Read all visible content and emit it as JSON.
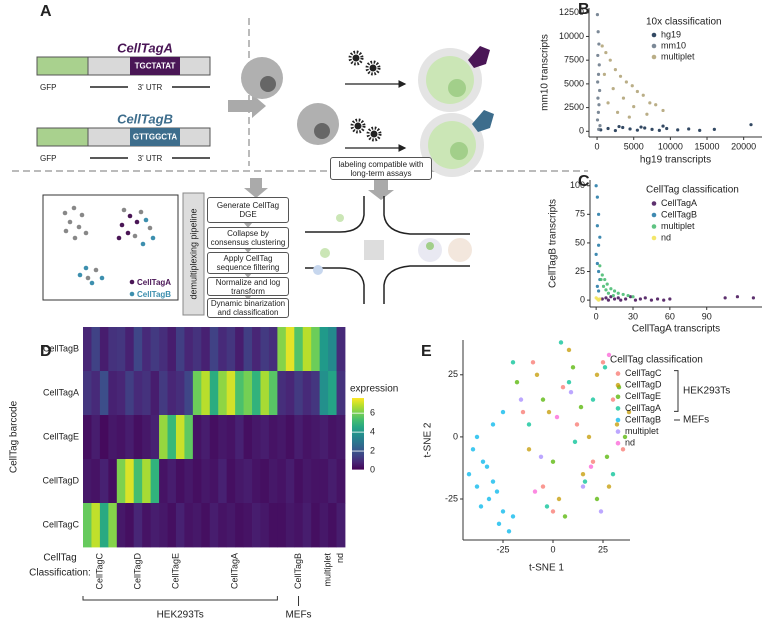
{
  "schematic": {
    "label": "A",
    "constructs": [
      {
        "name": "CellTagA",
        "barcode": "TGCTATAT",
        "gfp": "GFP",
        "utr": "3' UTR"
      },
      {
        "name": "CellTagB",
        "barcode": "GTTGGCTA",
        "gfp": "GFP",
        "utr": "3' UTR"
      }
    ],
    "assay_note": "labeling compatible with long-term assays",
    "pipeline_title": "demultiplexing pipeline",
    "pipeline_steps": [
      "Generate CellTag DGE",
      "Collapse by consensus clustering",
      "Apply CellTag sequence filtering",
      "Normalize and log transform",
      "Dynamic binarization and classification"
    ],
    "legend": [
      "CellTagA",
      "CellTagB"
    ]
  },
  "chart_data": [
    {
      "type": "scatter",
      "panel": "B",
      "xlabel": "hg19 transcripts",
      "ylabel": "mm10 transcripts",
      "legend_title": "10x classification",
      "legend": "top-right",
      "xlim": [
        -1100,
        22500
      ],
      "ylim": [
        -600,
        13000
      ],
      "xticks": [
        0,
        5000,
        10000,
        15000,
        20000
      ],
      "yticks": [
        0,
        2500,
        5000,
        7500,
        10000,
        12500
      ],
      "series": [
        {
          "name": "hg19",
          "color": "#1d3552",
          "x": [
            500,
            1500,
            2500,
            3500,
            4500,
            5500,
            6500,
            7500,
            8500,
            9500,
            11000,
            12500,
            14000,
            16000,
            21000,
            3000,
            6000,
            9000
          ],
          "values": [
            150,
            300,
            80,
            400,
            250,
            120,
            350,
            200,
            100,
            300,
            150,
            250,
            100,
            200,
            700,
            500,
            450,
            550
          ]
        },
        {
          "name": "mm10",
          "color": "#6e7c8c",
          "x": [
            50,
            150,
            250,
            100,
            300,
            200,
            80,
            350,
            120,
            260,
            180,
            60,
            400,
            220
          ],
          "values": [
            12300,
            10500,
            9200,
            8000,
            7000,
            6000,
            5200,
            4300,
            3500,
            2800,
            2000,
            1200,
            600,
            200
          ]
        },
        {
          "name": "multiplet",
          "color": "#b3a57a",
          "x": [
            700,
            1200,
            1800,
            2500,
            3200,
            4000,
            4800,
            5500,
            6300,
            7200,
            8000,
            9000,
            1000,
            2200,
            3600,
            5000,
            6800,
            1500,
            2800,
            4400
          ],
          "values": [
            9000,
            8300,
            7500,
            6500,
            5800,
            5200,
            4800,
            4200,
            3800,
            3000,
            2800,
            2200,
            6000,
            4500,
            3500,
            2600,
            1800,
            3000,
            2000,
            1500
          ]
        }
      ]
    },
    {
      "type": "scatter",
      "panel": "C",
      "xlabel": "CellTagA transcripts",
      "ylabel": "CellTagB transcripts",
      "legend_title": "CellTag classification",
      "legend": "top-right",
      "xlim": [
        -5,
        135
      ],
      "ylim": [
        -6,
        105
      ],
      "xticks": [
        0,
        30,
        60,
        90
      ],
      "yticks": [
        0,
        25,
        50,
        75,
        100
      ],
      "series": [
        {
          "name": "CellTagA",
          "color": "#4b1a5e",
          "x": [
            5,
            8,
            10,
            12,
            15,
            18,
            20,
            24,
            28,
            32,
            36,
            40,
            45,
            50,
            55,
            60,
            105,
            115,
            128
          ],
          "values": [
            1,
            2,
            0,
            3,
            1,
            2,
            0,
            1,
            3,
            0,
            1,
            2,
            0,
            1,
            0,
            1,
            2,
            3,
            2
          ]
        },
        {
          "name": "CellTagB",
          "color": "#2a7da8",
          "x": [
            0,
            1,
            2,
            1,
            3,
            2,
            0,
            1,
            2,
            3,
            1,
            2
          ],
          "values": [
            100,
            90,
            75,
            65,
            55,
            48,
            40,
            32,
            25,
            18,
            12,
            8
          ]
        },
        {
          "name": "multiplet",
          "color": "#4dbd74",
          "x": [
            3,
            5,
            7,
            9,
            12,
            15,
            18,
            22,
            26,
            30,
            6,
            10,
            4,
            8,
            14
          ],
          "values": [
            30,
            22,
            18,
            14,
            10,
            8,
            6,
            5,
            4,
            3,
            12,
            6,
            18,
            9,
            4
          ]
        },
        {
          "name": "nd",
          "color": "#f2e35a",
          "x": [
            1,
            2,
            0,
            3
          ],
          "values": [
            1,
            0,
            2,
            1
          ]
        }
      ]
    },
    {
      "type": "heatmap",
      "panel": "D",
      "ylabel": "CellTag barcode",
      "xlabel": [
        "CellTag",
        "Classification:"
      ],
      "rows": [
        "CellTagB",
        "CellTagA",
        "CellTagE",
        "CellTagD",
        "CellTagC"
      ],
      "colorbar_title": "expression",
      "colormap": "viridis",
      "clim": [
        0,
        7.6
      ],
      "cticks": [
        0,
        2,
        4,
        6
      ],
      "group_labels": [
        "HEK293Ts",
        "MEFs"
      ],
      "groups": [
        {
          "name": "CellTagC",
          "values": [
            [
              0.8,
              1.2,
              0.3,
              0.5,
              5.8
            ],
            [
              1.5,
              0.9,
              0.6,
              0.4,
              6.9
            ],
            [
              0.6,
              1.8,
              0.2,
              0.7,
              4.6
            ],
            [
              1.1,
              0.7,
              0.5,
              0.3,
              6.2
            ]
          ]
        },
        {
          "name": "CellTagD",
          "values": [
            [
              1.2,
              0.8,
              0.4,
              6.1,
              0.5
            ],
            [
              0.7,
              1.4,
              0.6,
              7.2,
              0.3
            ],
            [
              1.6,
              0.9,
              0.3,
              5.3,
              0.8
            ],
            [
              0.9,
              1.1,
              0.5,
              6.6,
              0.4
            ],
            [
              1.3,
              0.6,
              0.7,
              4.9,
              0.6
            ]
          ]
        },
        {
          "name": "CellTagE",
          "values": [
            [
              1.0,
              1.3,
              6.4,
              0.4,
              0.5
            ],
            [
              0.6,
              0.8,
              5.1,
              0.6,
              0.3
            ],
            [
              1.4,
              1.0,
              7.0,
              0.3,
              0.7
            ],
            [
              0.8,
              1.6,
              5.7,
              0.5,
              0.4
            ]
          ]
        },
        {
          "name": "CellTagA",
          "values": [
            [
              1.1,
              5.9,
              0.4,
              0.3,
              0.5
            ],
            [
              0.7,
              6.8,
              0.6,
              0.5,
              0.3
            ],
            [
              1.5,
              4.7,
              0.3,
              0.4,
              0.6
            ],
            [
              0.9,
              6.3,
              0.5,
              0.7,
              0.4
            ],
            [
              1.2,
              7.1,
              0.4,
              0.3,
              0.5
            ],
            [
              0.6,
              5.4,
              0.7,
              0.5,
              0.3
            ],
            [
              1.4,
              6.0,
              0.3,
              0.6,
              0.4
            ],
            [
              0.8,
              4.9,
              0.5,
              0.4,
              0.6
            ],
            [
              1.3,
              6.6,
              0.6,
              0.3,
              0.5
            ],
            [
              1.0,
              5.6,
              0.4,
              0.5,
              0.3
            ]
          ]
        },
        {
          "name": "CellTagB",
          "values": [
            [
              6.2,
              1.0,
              0.5,
              0.4,
              0.3
            ],
            [
              7.3,
              0.8,
              0.3,
              0.6,
              0.5
            ],
            [
              5.5,
              1.3,
              0.6,
              0.3,
              0.4
            ],
            [
              6.8,
              0.9,
              0.4,
              0.5,
              0.6
            ],
            [
              5.9,
              1.2,
              0.5,
              0.4,
              0.3
            ]
          ]
        },
        {
          "name": "multiplet",
          "values": [
            [
              4.1,
              3.8,
              0.6,
              0.4,
              0.5
            ],
            [
              3.6,
              4.4,
              0.4,
              0.6,
              0.3
            ]
          ]
        },
        {
          "name": "nd",
          "values": [
            [
              0.9,
              1.1,
              0.5,
              0.4,
              0.6
            ]
          ]
        }
      ]
    },
    {
      "type": "scatter",
      "panel": "E",
      "xlabel": "t-SNE 1",
      "ylabel": "t-SNE 2",
      "legend_title": "CellTag classification",
      "legend": "right",
      "legend_groups": [
        "HEK293Ts",
        "MEFs"
      ],
      "xlim": [
        -45,
        38.5
      ],
      "ylim": [
        -41.5,
        39
      ],
      "xticks": [
        -25,
        0,
        25
      ],
      "yticks": [
        -25,
        0,
        25
      ],
      "series": [
        {
          "name": "CellTagC",
          "color": "#f8766d",
          "x": [
            -10,
            5,
            20,
            30,
            -5,
            12,
            25,
            -15,
            35,
            0
          ],
          "values": [
            30,
            20,
            -10,
            15,
            -20,
            5,
            30,
            10,
            -5,
            -30
          ]
        },
        {
          "name": "CellTagD",
          "color": "#c49a00",
          "x": [
            -8,
            8,
            18,
            28,
            -2,
            15,
            32,
            -12,
            22,
            3,
            38
          ],
          "values": [
            25,
            35,
            0,
            -20,
            10,
            -15,
            5,
            -5,
            25,
            -25,
            10
          ]
        },
        {
          "name": "CellTagE",
          "color": "#53b400",
          "x": [
            -5,
            10,
            22,
            33,
            0,
            14,
            27,
            -18,
            6,
            36
          ],
          "values": [
            15,
            28,
            -25,
            20,
            -10,
            12,
            -8,
            22,
            -32,
            0
          ]
        },
        {
          "name": "CellTagA",
          "color": "#00c094",
          "x": [
            -12,
            4,
            16,
            26,
            -3,
            11,
            30,
            -20,
            20,
            8
          ],
          "values": [
            5,
            38,
            -18,
            28,
            -28,
            -2,
            -15,
            30,
            15,
            22
          ]
        },
        {
          "name": "CellTagB",
          "color": "#00b6eb",
          "x": [
            -42,
            -38,
            -35,
            -32,
            -30,
            -28,
            -25,
            -40,
            -36,
            -33,
            -27,
            -22,
            -20,
            -38,
            -30,
            -25
          ],
          "values": [
            -15,
            -20,
            -10,
            -25,
            -18,
            -22,
            -30,
            -5,
            -28,
            -12,
            -35,
            -38,
            -32,
            0,
            5,
            10
          ]
        },
        {
          "name": "multiplet",
          "color": "#a58aff",
          "x": [
            -6,
            9,
            24,
            -16,
            15
          ],
          "values": [
            -8,
            18,
            -30,
            15,
            -20
          ]
        },
        {
          "name": "nd",
          "color": "#fb61d7",
          "x": [
            2,
            19,
            -9,
            28
          ],
          "values": [
            8,
            -12,
            -22,
            33
          ]
        }
      ]
    }
  ]
}
